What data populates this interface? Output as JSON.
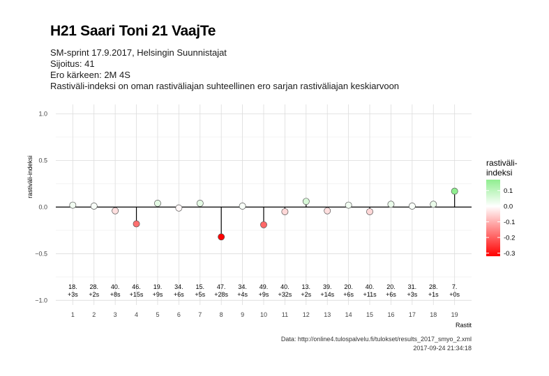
{
  "header": {
    "title": "H21 Saari Toni 21 VaajTe",
    "subtitle_lines": [
      "SM-sprint 17.9.2017, Helsingin Suunnistajat",
      "Sijoitus: 41",
      "Ero kärkeen: 2M 4S",
      "Rastiväli-indeksi on oman rastiväliajan suhteellinen ero sarjan rastiväliajan keskiarvoon"
    ]
  },
  "caption": {
    "source": "Data: http://online4.tulospalvelu.fi/tulokset/results_2017_smyo_2.xml",
    "timestamp": "2017-09-24 21:34:18"
  },
  "chart_data": {
    "type": "scatter",
    "title": "H21 Saari Toni 21 VaajTe",
    "xlabel": "Rastit",
    "ylabel": "rastiväli-indeksi",
    "x": [
      1,
      2,
      3,
      4,
      5,
      6,
      7,
      8,
      9,
      10,
      11,
      12,
      13,
      14,
      15,
      16,
      17,
      18,
      19
    ],
    "values": [
      0.02,
      0.01,
      -0.04,
      -0.18,
      0.04,
      -0.01,
      0.04,
      -0.32,
      0.01,
      -0.19,
      -0.05,
      0.06,
      -0.04,
      0.02,
      -0.05,
      0.03,
      0.01,
      0.03,
      0.17
    ],
    "point_labels": [
      [
        "18.",
        "+3s"
      ],
      [
        "28.",
        "+2s"
      ],
      [
        "40.",
        "+8s"
      ],
      [
        "46.",
        "+15s"
      ],
      [
        "19.",
        "+9s"
      ],
      [
        "34.",
        "+6s"
      ],
      [
        "15.",
        "+5s"
      ],
      [
        "47.",
        "+28s"
      ],
      [
        "34.",
        "+4s"
      ],
      [
        "49.",
        "+9s"
      ],
      [
        "40.",
        "+32s"
      ],
      [
        "13.",
        "+2s"
      ],
      [
        "39.",
        "+14s"
      ],
      [
        "20.",
        "+6s"
      ],
      [
        "40.",
        "+11s"
      ],
      [
        "20.",
        "+6s"
      ],
      [
        "31.",
        "+3s"
      ],
      [
        "28.",
        "+1s"
      ],
      [
        "7.",
        "+0s"
      ]
    ],
    "xlim": [
      0.2,
      19.8
    ],
    "ylim": [
      -1.05,
      1.1
    ],
    "y_ticks": [
      "-1.0",
      "-0.5",
      "0.0",
      "0.5",
      "1.0"
    ],
    "x_ticks": [
      "1",
      "2",
      "3",
      "4",
      "5",
      "6",
      "7",
      "8",
      "9",
      "10",
      "11",
      "12",
      "13",
      "14",
      "15",
      "16",
      "17",
      "18",
      "19"
    ],
    "grid": true,
    "legend": {
      "title": [
        "rastiväli-",
        "indeksi"
      ],
      "ticks": [
        "0.1",
        "0.0",
        "-0.1",
        "-0.2",
        "-0.3"
      ],
      "range": [
        -0.32,
        0.17
      ],
      "placement": "right",
      "colors": {
        "low": "#ff0000",
        "mid": "#ffffff",
        "high": "#90ee90"
      }
    }
  }
}
